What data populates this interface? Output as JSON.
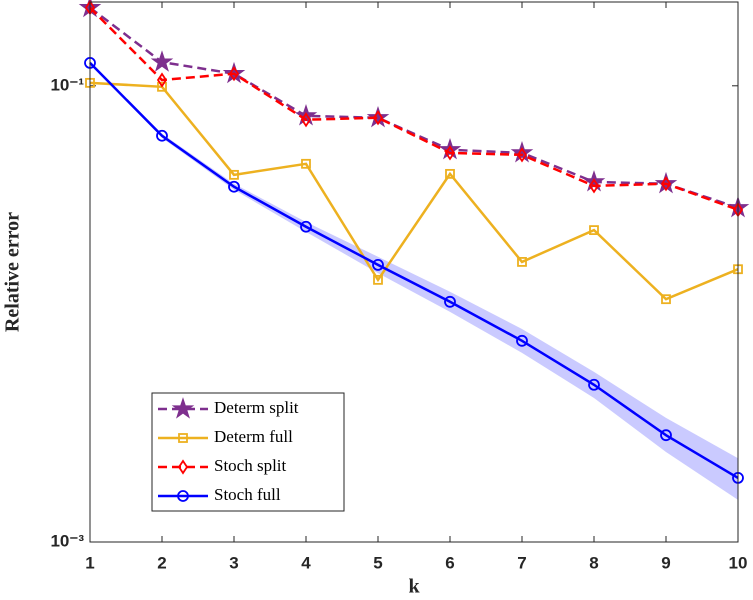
{
  "chart_data": {
    "type": "line",
    "xlabel": "k",
    "ylabel": "Relative error",
    "log_y": true,
    "x": [
      1,
      2,
      3,
      4,
      5,
      6,
      7,
      8,
      9,
      10
    ],
    "xlim": [
      1,
      10
    ],
    "xticks": [
      1,
      2,
      3,
      4,
      5,
      6,
      7,
      8,
      9,
      10
    ],
    "ylim": [
      0.001,
      0.233
    ],
    "yticks": [
      {
        "value": 0.001,
        "label": "10⁻³"
      },
      {
        "value": 0.1,
        "label": "10⁻¹"
      }
    ],
    "legend": "lower left",
    "series": [
      {
        "name": "Determ split",
        "color": "#7e2f8e",
        "dash": true,
        "marker": "star",
        "values": [
          0.22,
          0.127,
          0.113,
          0.0738,
          0.0724,
          0.0524,
          0.0508,
          0.0379,
          0.0372,
          0.0292
        ]
      },
      {
        "name": "Determ full",
        "color": "#edb120",
        "dash": false,
        "marker": "square",
        "values": [
          0.103,
          0.099,
          0.0407,
          0.0455,
          0.0141,
          0.0411,
          0.0169,
          0.0233,
          0.0116,
          0.0157
        ]
      },
      {
        "name": "Stoch split",
        "color": "#ff0000",
        "dash": true,
        "marker": "diamond",
        "values": [
          0.22,
          0.106,
          0.113,
          0.071,
          0.0724,
          0.0508,
          0.0498,
          0.0364,
          0.0372,
          0.0286
        ]
      },
      {
        "name": "Stoch full",
        "color": "#0000ff",
        "dash": false,
        "marker": "circle",
        "values": [
          0.126,
          0.0604,
          0.0361,
          0.0241,
          0.0164,
          0.0113,
          0.00762,
          0.00489,
          0.00294,
          0.00191
        ]
      }
    ],
    "band": {
      "color": "#b3b3ff",
      "lower": [
        0.125,
        0.0591,
        0.035,
        0.0229,
        0.0151,
        0.0102,
        0.00675,
        0.00428,
        0.00248,
        0.00153
      ],
      "upper": [
        0.127,
        0.0616,
        0.0372,
        0.0253,
        0.0178,
        0.0125,
        0.00859,
        0.00557,
        0.0035,
        0.00233
      ]
    }
  }
}
